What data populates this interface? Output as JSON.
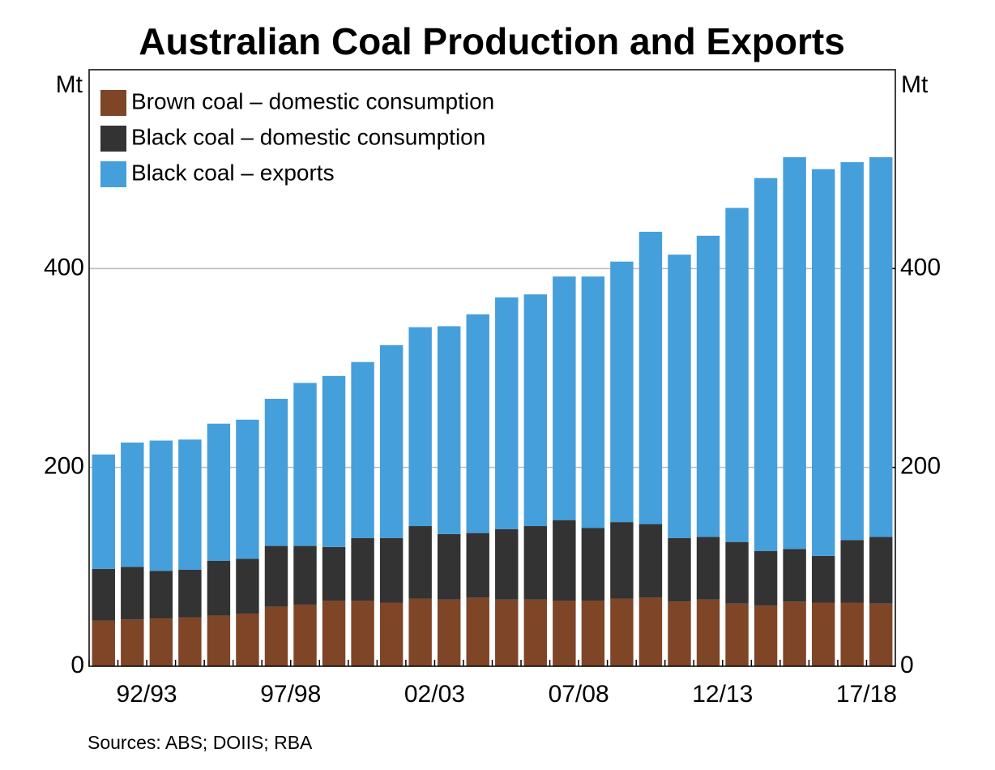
{
  "chart_data": {
    "type": "stacked_bar",
    "title": "Australian Coal Production and Exports",
    "ylabel": "Mt",
    "y2label": "Mt",
    "categories": [
      null,
      null,
      "92/93",
      null,
      null,
      null,
      null,
      "97/98",
      null,
      null,
      null,
      null,
      "02/03",
      null,
      null,
      null,
      null,
      "07/08",
      null,
      null,
      null,
      null,
      "12/13",
      null,
      null,
      null,
      null,
      "17/18"
    ],
    "series": [
      {
        "name": "Brown coal – domestic consumption",
        "color": "#7f4527",
        "values": [
          46,
          47,
          48,
          49,
          51,
          53,
          60,
          62,
          66,
          66,
          64,
          68,
          67,
          69,
          67,
          67,
          66,
          66,
          68,
          69,
          65,
          67,
          63,
          61,
          65,
          64,
          64,
          63
        ]
      },
      {
        "name": "Black coal – domestic consumption",
        "color": "#333333",
        "values": [
          52,
          53,
          48,
          48,
          55,
          55,
          61,
          59,
          54,
          63,
          65,
          73,
          66,
          65,
          71,
          74,
          81,
          73,
          77,
          74,
          64,
          63,
          62,
          55,
          53,
          47,
          63,
          67
        ]
      },
      {
        "name": "Black coal – exports",
        "color": "#459fdb",
        "values": [
          115,
          125,
          131,
          131,
          138,
          140,
          148,
          164,
          172,
          177,
          194,
          200,
          209,
          220,
          233,
          233,
          245,
          253,
          262,
          294,
          285,
          303,
          336,
          375,
          394,
          389,
          380,
          382
        ]
      }
    ],
    "ylim": [
      0,
      600
    ],
    "yticks": [
      0,
      200,
      400
    ],
    "y2lim": [
      0,
      600
    ],
    "y2ticks": [
      0,
      200,
      400
    ],
    "grid": true,
    "legend": "top-left",
    "source": "Sources: ABS; DOIIS; RBA"
  }
}
